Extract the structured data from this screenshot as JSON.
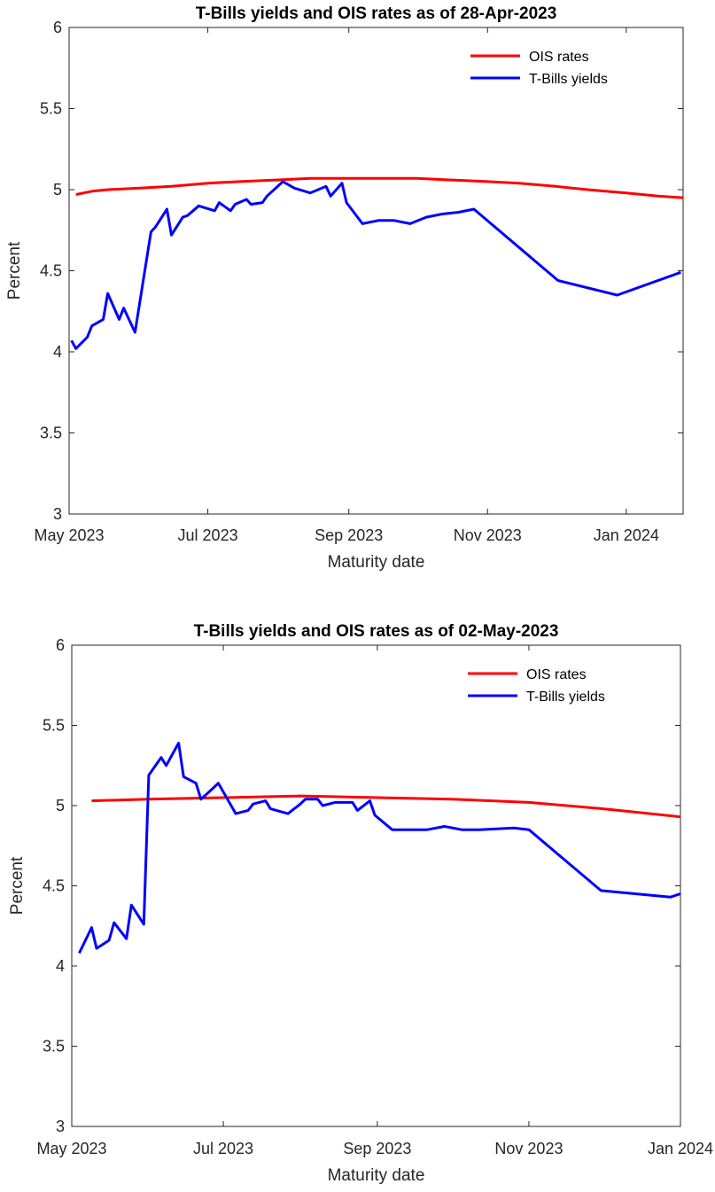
{
  "colors": {
    "ois": "#ff0000",
    "tbills": "#0000ff"
  },
  "chart_data": [
    {
      "type": "line",
      "title": "T-Bills yields and OIS rates as of 28-Apr-2023",
      "xlabel": "Maturity date",
      "ylabel": "Percent",
      "ylim": [
        3,
        6
      ],
      "xlim": [
        "2023-05-01",
        "2024-01-26"
      ],
      "yticks": [
        "3",
        "3.5",
        "4",
        "4.5",
        "5",
        "5.5",
        "6"
      ],
      "xticks": [
        {
          "date": "2023-05-01",
          "label": "May 2023"
        },
        {
          "date": "2023-07-01",
          "label": "Jul 2023"
        },
        {
          "date": "2023-09-01",
          "label": "Sep 2023"
        },
        {
          "date": "2023-11-01",
          "label": "Nov 2023"
        },
        {
          "date": "2024-01-01",
          "label": "Jan 2024"
        }
      ],
      "legend": "top-right",
      "grid": false,
      "series": [
        {
          "name": "OIS rates",
          "color": "#ff0000",
          "points": [
            [
              "2023-05-04",
              4.97
            ],
            [
              "2023-05-11",
              4.99
            ],
            [
              "2023-05-18",
              5.0
            ],
            [
              "2023-06-01",
              5.01
            ],
            [
              "2023-06-15",
              5.02
            ],
            [
              "2023-07-01",
              5.04
            ],
            [
              "2023-07-15",
              5.05
            ],
            [
              "2023-08-01",
              5.06
            ],
            [
              "2023-08-15",
              5.07
            ],
            [
              "2023-09-01",
              5.07
            ],
            [
              "2023-09-15",
              5.07
            ],
            [
              "2023-10-01",
              5.07
            ],
            [
              "2023-10-15",
              5.06
            ],
            [
              "2023-11-01",
              5.05
            ],
            [
              "2023-11-15",
              5.04
            ],
            [
              "2023-12-01",
              5.02
            ],
            [
              "2023-12-15",
              5.0
            ],
            [
              "2024-01-01",
              4.98
            ],
            [
              "2024-01-15",
              4.96
            ],
            [
              "2024-01-26",
              4.95
            ]
          ]
        },
        {
          "name": "T-Bills yields",
          "color": "#0000ff",
          "points": [
            [
              "2023-05-02",
              4.07
            ],
            [
              "2023-05-04",
              4.02
            ],
            [
              "2023-05-09",
              4.09
            ],
            [
              "2023-05-11",
              4.16
            ],
            [
              "2023-05-16",
              4.2
            ],
            [
              "2023-05-18",
              4.36
            ],
            [
              "2023-05-23",
              4.2
            ],
            [
              "2023-05-25",
              4.27
            ],
            [
              "2023-05-30",
              4.12
            ],
            [
              "2023-06-06",
              4.74
            ],
            [
              "2023-06-08",
              4.77
            ],
            [
              "2023-06-13",
              4.88
            ],
            [
              "2023-06-15",
              4.72
            ],
            [
              "2023-06-20",
              4.83
            ],
            [
              "2023-06-22",
              4.84
            ],
            [
              "2023-06-27",
              4.9
            ],
            [
              "2023-07-04",
              4.87
            ],
            [
              "2023-07-06",
              4.92
            ],
            [
              "2023-07-11",
              4.87
            ],
            [
              "2023-07-13",
              4.91
            ],
            [
              "2023-07-18",
              4.94
            ],
            [
              "2023-07-20",
              4.91
            ],
            [
              "2023-07-25",
              4.92
            ],
            [
              "2023-07-27",
              4.96
            ],
            [
              "2023-08-03",
              5.05
            ],
            [
              "2023-08-08",
              5.01
            ],
            [
              "2023-08-15",
              4.98
            ],
            [
              "2023-08-22",
              5.02
            ],
            [
              "2023-08-24",
              4.96
            ],
            [
              "2023-08-29",
              5.04
            ],
            [
              "2023-08-31",
              4.92
            ],
            [
              "2023-09-07",
              4.79
            ],
            [
              "2023-09-14",
              4.81
            ],
            [
              "2023-09-21",
              4.81
            ],
            [
              "2023-09-28",
              4.79
            ],
            [
              "2023-10-05",
              4.83
            ],
            [
              "2023-10-12",
              4.85
            ],
            [
              "2023-10-19",
              4.86
            ],
            [
              "2023-10-26",
              4.88
            ],
            [
              "2023-12-02",
              4.44
            ],
            [
              "2023-12-28",
              4.35
            ],
            [
              "2024-01-25",
              4.49
            ]
          ]
        }
      ]
    },
    {
      "type": "line",
      "title": "T-Bills yields and OIS rates as of 02-May-2023",
      "xlabel": "Maturity date",
      "ylabel": "Percent",
      "ylim": [
        3,
        6
      ],
      "xlim": [
        "2023-05-01",
        "2024-01-01"
      ],
      "yticks": [
        "3",
        "3.5",
        "4",
        "4.5",
        "5",
        "5.5",
        "6"
      ],
      "xticks": [
        {
          "date": "2023-05-01",
          "label": "May 2023"
        },
        {
          "date": "2023-07-01",
          "label": "Jul 2023"
        },
        {
          "date": "2023-09-01",
          "label": "Sep 2023"
        },
        {
          "date": "2023-11-01",
          "label": "Nov 2023"
        },
        {
          "date": "2024-01-01",
          "label": "Jan 2024"
        }
      ],
      "legend": "top-right",
      "grid": false,
      "series": [
        {
          "name": "OIS rates",
          "color": "#ff0000",
          "points": [
            [
              "2023-05-09",
              5.03
            ],
            [
              "2023-06-01",
              5.04
            ],
            [
              "2023-07-01",
              5.05
            ],
            [
              "2023-08-01",
              5.06
            ],
            [
              "2023-09-01",
              5.05
            ],
            [
              "2023-10-01",
              5.04
            ],
            [
              "2023-11-01",
              5.02
            ],
            [
              "2023-12-01",
              4.98
            ],
            [
              "2024-01-01",
              4.93
            ]
          ]
        },
        {
          "name": "T-Bills yields",
          "color": "#0000ff",
          "points": [
            [
              "2023-05-04",
              4.08
            ],
            [
              "2023-05-09",
              4.24
            ],
            [
              "2023-05-11",
              4.11
            ],
            [
              "2023-05-16",
              4.16
            ],
            [
              "2023-05-18",
              4.27
            ],
            [
              "2023-05-23",
              4.17
            ],
            [
              "2023-05-25",
              4.38
            ],
            [
              "2023-05-30",
              4.26
            ],
            [
              "2023-06-01",
              5.19
            ],
            [
              "2023-06-06",
              5.3
            ],
            [
              "2023-06-08",
              5.25
            ],
            [
              "2023-06-13",
              5.39
            ],
            [
              "2023-06-15",
              5.18
            ],
            [
              "2023-06-20",
              5.14
            ],
            [
              "2023-06-22",
              5.04
            ],
            [
              "2023-06-27",
              5.11
            ],
            [
              "2023-06-29",
              5.14
            ],
            [
              "2023-07-06",
              4.95
            ],
            [
              "2023-07-11",
              4.97
            ],
            [
              "2023-07-13",
              5.01
            ],
            [
              "2023-07-18",
              5.03
            ],
            [
              "2023-07-20",
              4.98
            ],
            [
              "2023-07-27",
              4.95
            ],
            [
              "2023-08-01",
              5.01
            ],
            [
              "2023-08-03",
              5.04
            ],
            [
              "2023-08-08",
              5.04
            ],
            [
              "2023-08-10",
              5.0
            ],
            [
              "2023-08-15",
              5.02
            ],
            [
              "2023-08-22",
              5.02
            ],
            [
              "2023-08-24",
              4.97
            ],
            [
              "2023-08-29",
              5.03
            ],
            [
              "2023-08-31",
              4.94
            ],
            [
              "2023-09-07",
              4.85
            ],
            [
              "2023-09-21",
              4.85
            ],
            [
              "2023-09-28",
              4.87
            ],
            [
              "2023-10-05",
              4.85
            ],
            [
              "2023-10-12",
              4.85
            ],
            [
              "2023-10-26",
              4.86
            ],
            [
              "2023-11-01",
              4.85
            ],
            [
              "2023-11-30",
              4.47
            ],
            [
              "2023-12-28",
              4.43
            ],
            [
              "2024-01-01",
              4.45
            ]
          ]
        }
      ]
    }
  ]
}
